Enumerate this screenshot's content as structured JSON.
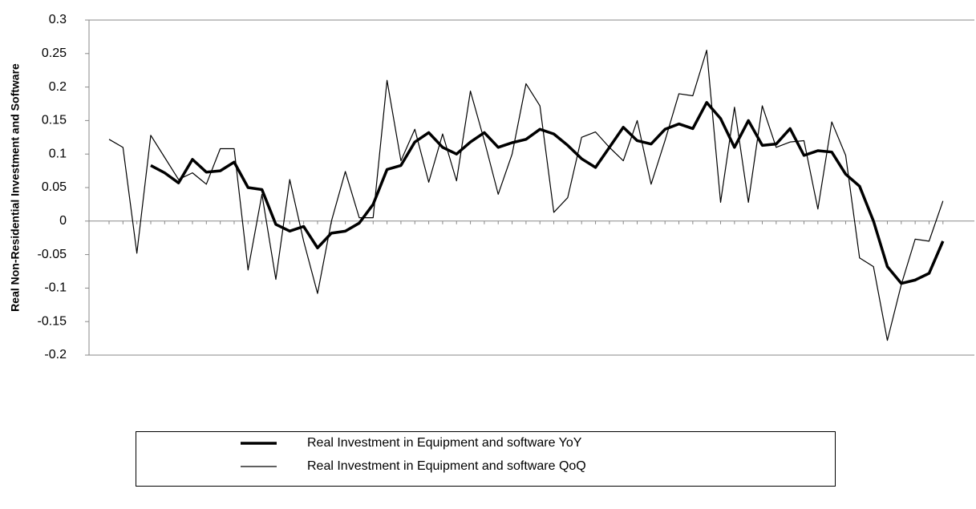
{
  "chart_data": {
    "type": "line",
    "y_label": "Real Non-Residential Investment and Software",
    "categories": [
      null,
      null,
      null,
      null,
      null,
      null,
      null,
      null,
      null,
      null,
      null,
      null,
      null,
      null,
      null,
      null,
      null,
      null,
      null,
      null,
      null,
      null,
      null,
      null,
      null,
      null,
      null,
      null,
      null,
      null,
      null,
      null,
      null,
      null,
      null,
      null,
      null,
      null,
      null,
      null,
      null,
      null,
      null,
      null,
      null,
      null,
      null,
      null,
      null,
      null,
      null,
      null,
      null,
      null,
      null,
      null,
      null,
      null,
      null,
      null,
      null
    ],
    "series": [
      {
        "name": "Real Investment in Equipment and software YoY",
        "color": "#000000",
        "width": 3.5,
        "values": [
          null,
          null,
          null,
          0.083,
          0.072,
          0.057,
          0.092,
          0.073,
          0.075,
          0.088,
          0.05,
          0.047,
          -0.005,
          -0.015,
          -0.008,
          -0.04,
          -0.018,
          -0.015,
          -0.003,
          0.025,
          0.077,
          0.083,
          0.118,
          0.132,
          0.11,
          0.1,
          0.118,
          0.132,
          0.11,
          0.117,
          0.122,
          0.137,
          0.13,
          0.113,
          0.093,
          0.08,
          0.11,
          0.14,
          0.12,
          0.115,
          0.137,
          0.145,
          0.138,
          0.177,
          0.153,
          0.11,
          0.15,
          0.113,
          0.115,
          0.138,
          0.098,
          0.105,
          0.103,
          0.07,
          0.052,
          0.0,
          -0.068,
          -0.093,
          -0.088,
          -0.078,
          -0.03
        ]
      },
      {
        "name": "Real Investment in Equipment and software QoQ",
        "color": "#000000",
        "width": 1.2,
        "values": [
          0.122,
          0.11,
          -0.048,
          0.128,
          0.095,
          0.062,
          0.072,
          0.055,
          0.108,
          0.108,
          -0.073,
          0.04,
          -0.087,
          0.062,
          -0.03,
          -0.108,
          0.0,
          0.074,
          0.005,
          0.005,
          0.21,
          0.09,
          0.137,
          0.058,
          0.13,
          0.06,
          0.194,
          0.12,
          0.04,
          0.1,
          0.205,
          0.172,
          0.013,
          0.035,
          0.125,
          0.133,
          0.11,
          0.09,
          0.15,
          0.055,
          0.12,
          0.19,
          0.187,
          0.255,
          0.028,
          0.17,
          0.028,
          0.172,
          0.11,
          0.118,
          0.12,
          0.018,
          0.148,
          0.098,
          -0.055,
          -0.068,
          -0.178,
          -0.095,
          -0.027,
          -0.03,
          0.03
        ]
      }
    ],
    "ylim": [
      -0.2,
      0.3
    ],
    "yticks": [
      0.3,
      0.25,
      0.2,
      0.15,
      0.1,
      0.05,
      0,
      -0.05,
      -0.1,
      -0.15,
      -0.2
    ],
    "grid": false,
    "legend": "bottom"
  }
}
